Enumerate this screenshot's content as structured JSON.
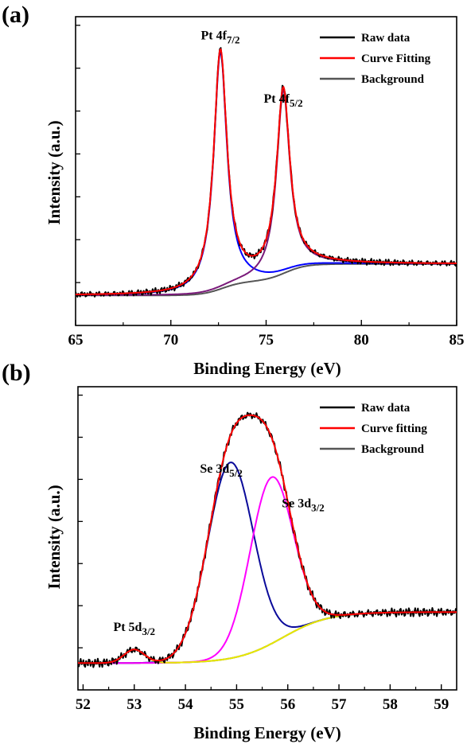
{
  "colors": {
    "raw": "#000000",
    "fit": "#ff0000",
    "background": "#555555",
    "comp_blue": "#0000ff",
    "comp_purple": "#7a1a7a",
    "comp_navy": "#0a0a9a",
    "comp_magenta": "#ff00ff",
    "comp_yellow": "#e8e800"
  },
  "chart_data": [
    {
      "panel_label": "(a)",
      "type": "line",
      "xlabel": "Binding Energy (eV)",
      "ylabel": "Intensity (a.u.)",
      "xlim": [
        65,
        85
      ],
      "ylim": [
        0,
        1.08
      ],
      "xticks": [
        "65",
        "70",
        "75",
        "80",
        "85"
      ],
      "legend": {
        "position": "top-right",
        "items": [
          {
            "label": "Raw data",
            "color_key": "raw"
          },
          {
            "label": "Curve Fitting",
            "color_key": "fit"
          },
          {
            "label": "Background",
            "color_key": "background"
          }
        ]
      },
      "annotations": [
        {
          "base": "Pt 4f",
          "sub": "7/2",
          "x": 72.6,
          "y": 1.0
        },
        {
          "base": "Pt 4f",
          "sub": "5/2",
          "x": 75.9,
          "y": 0.78
        }
      ],
      "peaks": [
        {
          "name": "Pt 4f7/2",
          "center": 72.6,
          "height": 0.83,
          "width": 0.42,
          "color_key": "comp_blue"
        },
        {
          "name": "Pt 4f5/2",
          "center": 75.9,
          "height": 0.64,
          "width": 0.42,
          "color_key": "comp_purple"
        }
      ],
      "background_model": {
        "low": 0.105,
        "high": 0.215,
        "steps": [
          {
            "center": 72.7,
            "fraction": 0.45,
            "width": 0.55
          },
          {
            "center": 76.0,
            "fraction": 0.55,
            "width": 0.55
          }
        ]
      },
      "series": [
        {
          "name": "Raw data",
          "color_key": "raw"
        },
        {
          "name": "Curve Fitting",
          "color_key": "fit"
        },
        {
          "name": "Background",
          "color_key": "background"
        }
      ]
    },
    {
      "panel_label": "(b)",
      "type": "line",
      "xlabel": "Binding Energy (eV)",
      "ylabel": "Intensity (a.u.)",
      "xlim": [
        51.9,
        59.3
      ],
      "ylim": [
        -0.08,
        1.05
      ],
      "xticks": [
        "52",
        "53",
        "54",
        "55",
        "56",
        "57",
        "58",
        "59"
      ],
      "legend": {
        "position": "top-right",
        "items": [
          {
            "label": "Raw data",
            "color_key": "raw"
          },
          {
            "label": "Curve fitting",
            "color_key": "fit"
          },
          {
            "label": "Background",
            "color_key": "background"
          }
        ]
      },
      "annotations": [
        {
          "base": "Se 3d",
          "sub": "5/2",
          "x": 54.7,
          "y": 0.73
        },
        {
          "base": "Se 3d",
          "sub": "3/2",
          "x": 56.3,
          "y": 0.6
        },
        {
          "base": "Pt 5d",
          "sub": "3/2",
          "x": 53.0,
          "y": 0.14
        }
      ],
      "peaks": [
        {
          "name": "Se 3d5/2",
          "center": 54.88,
          "height": 0.73,
          "sigma": 0.45,
          "color_key": "comp_navy"
        },
        {
          "name": "Se 3d3/2",
          "center": 55.68,
          "height": 0.62,
          "sigma": 0.42,
          "color_key": "comp_magenta"
        },
        {
          "name": "Pt 5d3/2",
          "center": 53.0,
          "height": 0.05,
          "sigma": 0.2,
          "color_key": "comp_yellow"
        }
      ],
      "background_model": {
        "low": 0.02,
        "high": 0.21,
        "center": 55.9,
        "width": 0.45
      },
      "series": [
        {
          "name": "Raw data",
          "color_key": "raw"
        },
        {
          "name": "Curve fitting",
          "color_key": "fit"
        },
        {
          "name": "Background",
          "color_key": "background"
        }
      ]
    }
  ]
}
